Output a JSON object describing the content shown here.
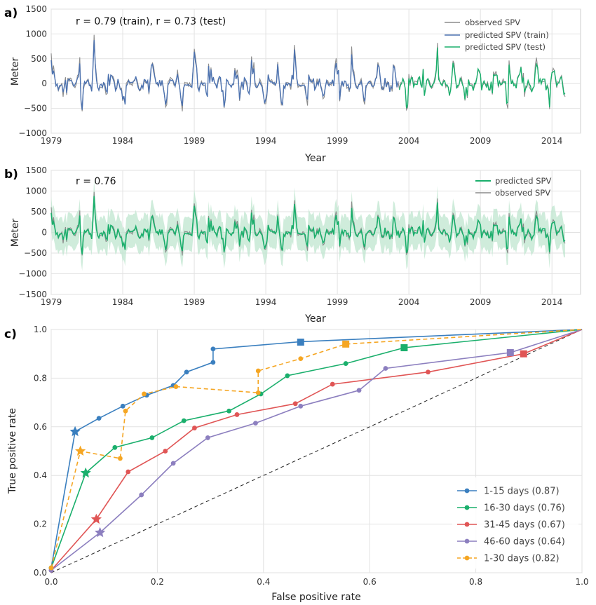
{
  "colors": {
    "observed": "#8c8c8c",
    "train": "#4c72b0",
    "test": "#1aaf6c",
    "band": "#bfe6cf",
    "c1": "#3a7fbf",
    "c2": "#1aaf6c",
    "c3": "#e05555",
    "c4": "#8c7fbf",
    "c5": "#f5a623"
  },
  "chart_data": [
    {
      "panel": "a)",
      "type": "line",
      "annotation": "r = 0.79 (train), r = 0.73 (test)",
      "xlabel": "Year",
      "ylabel": "Meter",
      "xlim": [
        1979,
        2016
      ],
      "ylim": [
        -1000,
        1500
      ],
      "xticks": [
        "1979",
        "1984",
        "1989",
        "1994",
        "1999",
        "2004",
        "2009",
        "2014"
      ],
      "yticks": [
        "−1000",
        "−500",
        "0",
        "500",
        "1000",
        "1500"
      ],
      "train_end": 2003.3,
      "grid": true,
      "legend": "top-right",
      "series": [
        {
          "name": "observed SPV",
          "color_key": "observed"
        },
        {
          "name": "predicted SPV (train)",
          "color_key": "train"
        },
        {
          "name": "predicted SPV (test)",
          "color_key": "test"
        }
      ]
    },
    {
      "panel": "b)",
      "type": "line",
      "annotation": "r = 0.76",
      "xlabel": "Year",
      "ylabel": "Meter",
      "xlim": [
        1979,
        2016
      ],
      "ylim": [
        -1500,
        1500
      ],
      "xticks": [
        "1979",
        "1984",
        "1989",
        "1994",
        "1999",
        "2004",
        "2009",
        "2014"
      ],
      "yticks": [
        "−1500",
        "−1000",
        "−500",
        "0",
        "500",
        "1000",
        "1500"
      ],
      "grid": true,
      "legend": "top-right",
      "series": [
        {
          "name": "predicted SPV",
          "color_key": "test"
        },
        {
          "name": "observed SPV",
          "color_key": "observed"
        }
      ]
    },
    {
      "panel": "c)",
      "type": "line",
      "xlabel": "False positive rate",
      "ylabel": "True positive rate",
      "xlim": [
        0,
        1
      ],
      "ylim": [
        0,
        1
      ],
      "xticks": [
        "0.0",
        "0.2",
        "0.4",
        "0.6",
        "0.8",
        "1.0"
      ],
      "yticks": [
        "0.0",
        "0.2",
        "0.4",
        "0.6",
        "0.8",
        "1.0"
      ],
      "grid": true,
      "legend": "bottom-right",
      "series": [
        {
          "name": "1-15 days (0.87)",
          "color_key": "c1",
          "dashed": false,
          "points": [
            [
              0,
              0.02
            ],
            [
              0.045,
              0.58
            ],
            [
              0.09,
              0.635
            ],
            [
              0.135,
              0.685
            ],
            [
              0.18,
              0.73
            ],
            [
              0.23,
              0.77
            ],
            [
              0.255,
              0.825
            ],
            [
              0.305,
              0.865
            ],
            [
              0.305,
              0.92
            ],
            [
              0.47,
              0.95
            ],
            [
              1,
              1
            ]
          ],
          "star": [
            0.045,
            0.58
          ],
          "square": [
            0.47,
            0.948
          ]
        },
        {
          "name": "16-30 days (0.76)",
          "color_key": "c2",
          "dashed": false,
          "points": [
            [
              0,
              0.02
            ],
            [
              0.065,
              0.41
            ],
            [
              0.12,
              0.515
            ],
            [
              0.19,
              0.555
            ],
            [
              0.25,
              0.625
            ],
            [
              0.335,
              0.665
            ],
            [
              0.395,
              0.735
            ],
            [
              0.445,
              0.81
            ],
            [
              0.555,
              0.86
            ],
            [
              0.665,
              0.925
            ],
            [
              1,
              1
            ]
          ],
          "star": [
            0.065,
            0.41
          ],
          "square": [
            0.665,
            0.925
          ]
        },
        {
          "name": "31-45 days (0.67)",
          "color_key": "c3",
          "dashed": false,
          "points": [
            [
              0,
              0.01
            ],
            [
              0.085,
              0.22
            ],
            [
              0.145,
              0.415
            ],
            [
              0.215,
              0.5
            ],
            [
              0.27,
              0.595
            ],
            [
              0.35,
              0.65
            ],
            [
              0.46,
              0.695
            ],
            [
              0.53,
              0.775
            ],
            [
              0.71,
              0.825
            ],
            [
              0.89,
              0.9
            ],
            [
              1,
              1
            ]
          ],
          "star": [
            0.085,
            0.22
          ],
          "square": [
            0.89,
            0.9
          ]
        },
        {
          "name": "46-60 days (0.64)",
          "color_key": "c4",
          "dashed": false,
          "points": [
            [
              0,
              0.01
            ],
            [
              0.092,
              0.165
            ],
            [
              0.17,
              0.32
            ],
            [
              0.23,
              0.45
            ],
            [
              0.295,
              0.555
            ],
            [
              0.385,
              0.615
            ],
            [
              0.47,
              0.685
            ],
            [
              0.58,
              0.75
            ],
            [
              0.63,
              0.84
            ],
            [
              0.865,
              0.905
            ],
            [
              1,
              1
            ]
          ],
          "star": [
            0.092,
            0.165
          ],
          "square": [
            0.865,
            0.905
          ]
        },
        {
          "name": "1-30 days (0.82)",
          "color_key": "c5",
          "dashed": true,
          "points": [
            [
              0,
              0.02
            ],
            [
              0.055,
              0.5
            ],
            [
              0.13,
              0.47
            ],
            [
              0.14,
              0.665
            ],
            [
              0.175,
              0.735
            ],
            [
              0.235,
              0.765
            ],
            [
              0.39,
              0.74
            ],
            [
              0.39,
              0.83
            ],
            [
              0.47,
              0.88
            ],
            [
              0.555,
              0.94
            ],
            [
              1,
              1
            ]
          ],
          "star": [
            0.055,
            0.5
          ],
          "square": [
            0.555,
            0.94
          ]
        }
      ]
    }
  ]
}
